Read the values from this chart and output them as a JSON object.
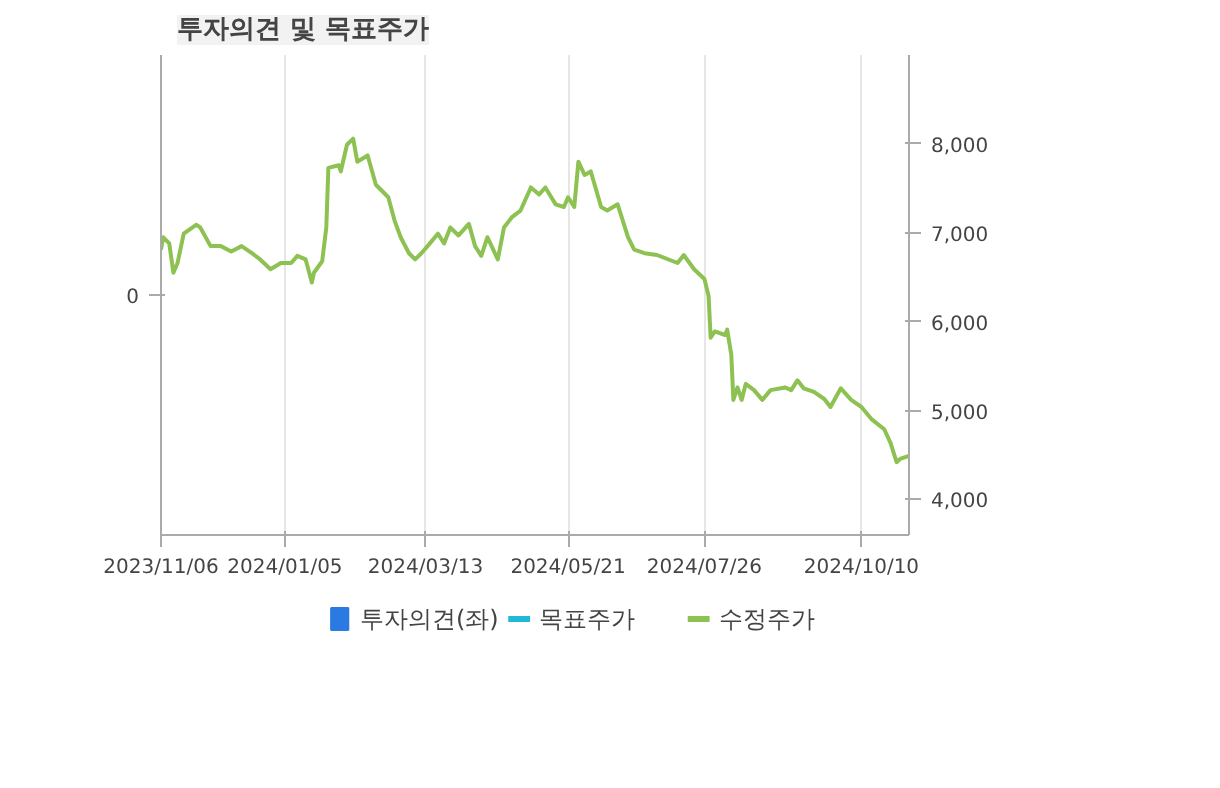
{
  "chart_data": {
    "type": "line",
    "title": "투자의견 및 목표주가",
    "xlim": [
      "2023-11-06",
      "2024-11-02"
    ],
    "xticks": [
      {
        "value": "2023-11-06",
        "label": "2023/11/06"
      },
      {
        "value": "2024-01-05",
        "label": "2024/01/05"
      },
      {
        "value": "2024-03-13",
        "label": "2024/03/13"
      },
      {
        "value": "2024-05-21",
        "label": "2024/05/21"
      },
      {
        "value": "2024-07-26",
        "label": "2024/07/26"
      },
      {
        "value": "2024-10-10",
        "label": "2024/10/10"
      }
    ],
    "annotations": [
      "0"
    ],
    "y2lim": [
      3600,
      9000
    ],
    "y2ticks": [
      {
        "value": 4000,
        "label": "4,000"
      },
      {
        "value": 5000,
        "label": "5,000"
      },
      {
        "value": 6000,
        "label": "6,000"
      },
      {
        "value": 7000,
        "label": "7,000"
      },
      {
        "value": 8000,
        "label": "8,000"
      }
    ],
    "grid": "x",
    "legend": "bottom",
    "series": [
      {
        "name": "투자의견(좌)",
        "type": "bar",
        "color": "#2a7ae2"
      },
      {
        "name": "목표주가",
        "type": "line",
        "axis": "y2",
        "color": "#22b8d8"
      },
      {
        "name": "수정주가",
        "axis": "y2",
        "color": "#8dc152",
        "x": [
          "2023-11-06",
          "2023-11-07",
          "2023-11-10",
          "2023-11-12",
          "2023-11-14",
          "2023-11-17",
          "2023-11-23",
          "2023-11-25",
          "2023-11-30",
          "2023-12-05",
          "2023-12-10",
          "2023-12-15",
          "2023-12-20",
          "2023-12-24",
          "2023-12-29",
          "2024-01-03",
          "2024-01-08",
          "2024-01-11",
          "2024-01-15",
          "2024-01-18",
          "2024-01-19",
          "2024-01-23",
          "2024-01-25",
          "2024-01-26",
          "2024-01-31",
          "2024-02-01",
          "2024-02-04",
          "2024-02-07",
          "2024-02-09",
          "2024-02-14",
          "2024-02-18",
          "2024-02-21",
          "2024-02-24",
          "2024-02-27",
          "2024-03-01",
          "2024-03-05",
          "2024-03-08",
          "2024-03-11",
          "2024-03-14",
          "2024-03-19",
          "2024-03-22",
          "2024-03-25",
          "2024-03-29",
          "2024-04-03",
          "2024-04-06",
          "2024-04-09",
          "2024-04-12",
          "2024-04-17",
          "2024-04-20",
          "2024-04-24",
          "2024-04-28",
          "2024-05-03",
          "2024-05-07",
          "2024-05-10",
          "2024-05-15",
          "2024-05-19",
          "2024-05-21",
          "2024-05-24",
          "2024-05-26",
          "2024-05-29",
          "2024-06-01",
          "2024-06-06",
          "2024-06-09",
          "2024-06-14",
          "2024-06-19",
          "2024-06-22",
          "2024-06-27",
          "2024-07-03",
          "2024-07-13",
          "2024-07-16",
          "2024-07-21",
          "2024-07-26",
          "2024-07-28",
          "2024-07-29",
          "2024-07-31",
          "2024-08-05",
          "2024-08-06",
          "2024-08-08",
          "2024-08-09",
          "2024-08-11",
          "2024-08-13",
          "2024-08-15",
          "2024-08-19",
          "2024-08-23",
          "2024-08-27",
          "2024-09-03",
          "2024-09-06",
          "2024-09-09",
          "2024-09-12",
          "2024-09-17",
          "2024-09-22",
          "2024-09-25",
          "2024-09-30",
          "2024-10-05",
          "2024-10-10",
          "2024-10-15",
          "2024-10-21",
          "2024-10-24",
          "2024-10-27",
          "2024-10-29",
          "2024-11-02"
        ],
        "values": [
          6810,
          6950,
          6880,
          6550,
          6660,
          6990,
          7090,
          7060,
          6850,
          6850,
          6790,
          6850,
          6770,
          6700,
          6590,
          6660,
          6660,
          6740,
          6700,
          6440,
          6550,
          6680,
          7060,
          7730,
          7760,
          7690,
          7990,
          8060,
          7800,
          7870,
          7540,
          7470,
          7400,
          7140,
          6950,
          6770,
          6700,
          6770,
          6850,
          6990,
          6880,
          7060,
          6970,
          7100,
          6850,
          6740,
          6950,
          6700,
          7060,
          7180,
          7250,
          7510,
          7430,
          7510,
          7320,
          7290,
          7400,
          7290,
          7800,
          7650,
          7690,
          7290,
          7250,
          7320,
          6950,
          6810,
          6770,
          6750,
          6660,
          6750,
          6590,
          6480,
          6290,
          5820,
          5890,
          5850,
          5910,
          5630,
          5120,
          5260,
          5120,
          5300,
          5230,
          5120,
          5230,
          5260,
          5230,
          5340,
          5250,
          5210,
          5130,
          5040,
          5250,
          5120,
          5040,
          4900,
          4790,
          4640,
          4420,
          4460,
          4490
        ]
      }
    ]
  }
}
